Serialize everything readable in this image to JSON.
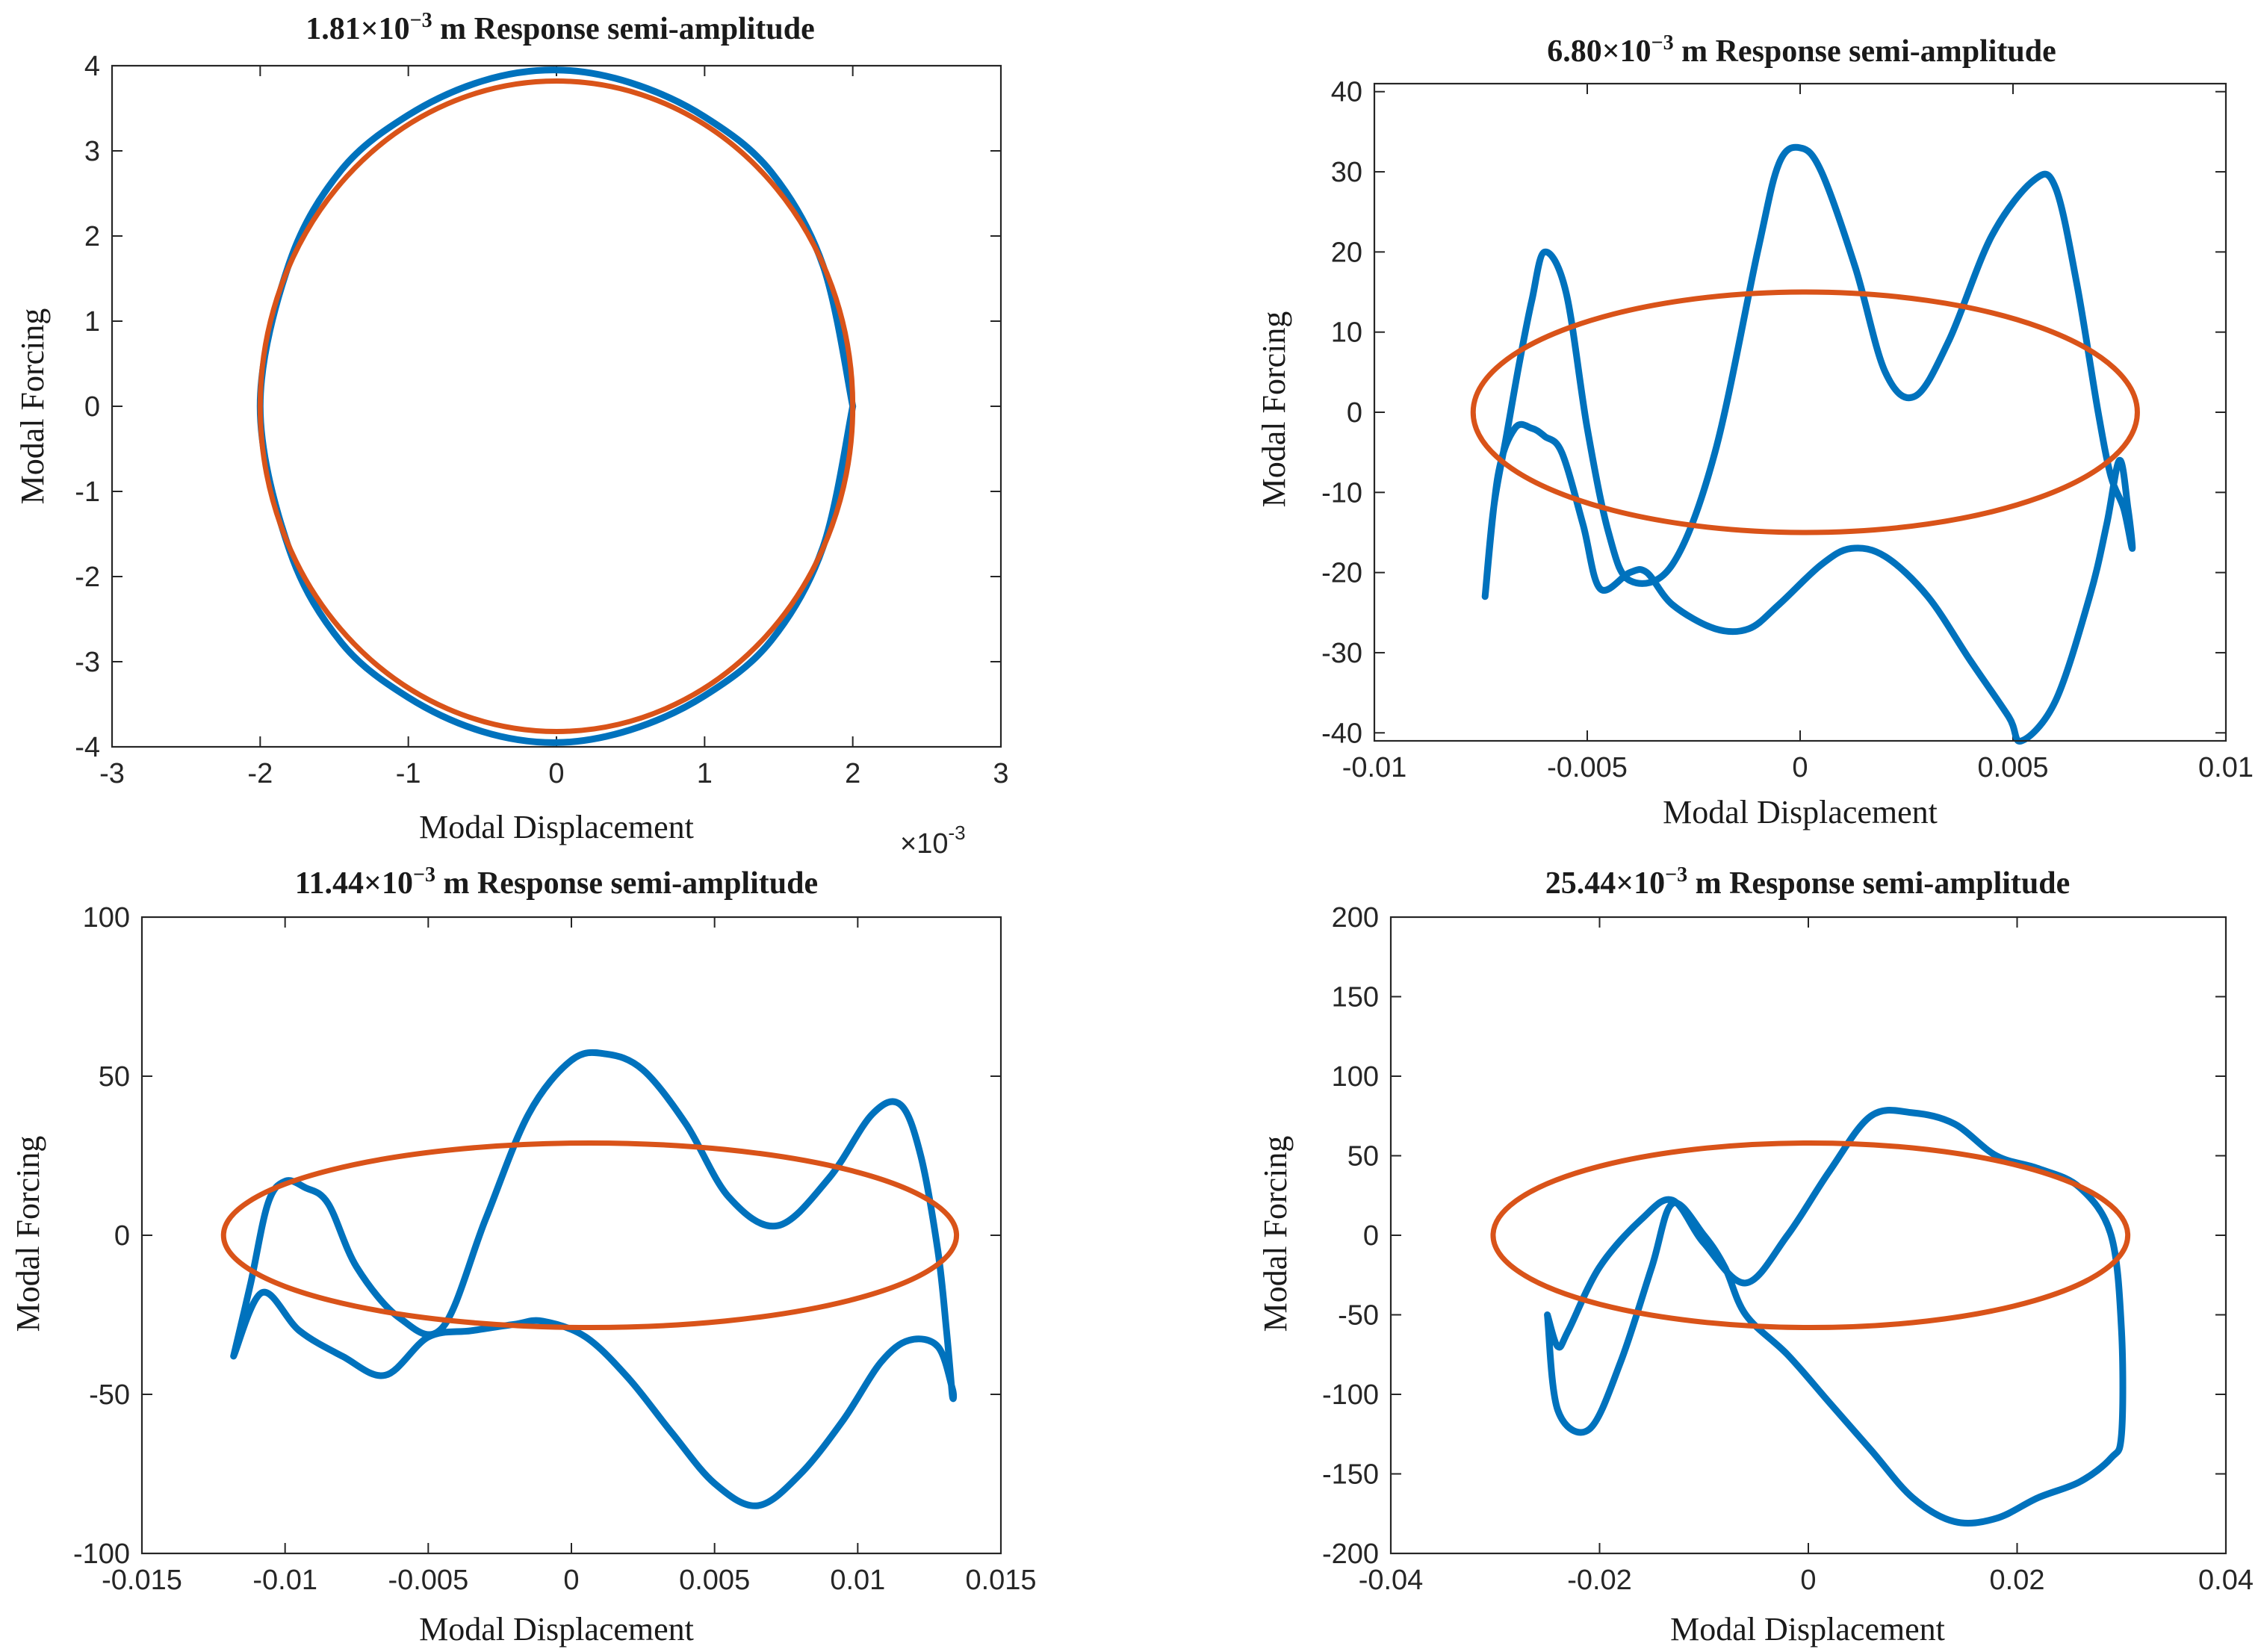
{
  "figure": {
    "colors": {
      "hysteresis": "#0072BD",
      "linear": "#D95319",
      "axis": "#262626"
    }
  },
  "chart_data": [
    {
      "type": "line",
      "title_value": "1.81×10",
      "title_exp": "−3",
      "title_rest": " m Response semi-amplitude",
      "xlabel": "Modal Displacement",
      "ylabel": "Modal Forcing",
      "xlim": [
        -3,
        3
      ],
      "ylim": [
        -4,
        4
      ],
      "x_ticks": [
        -3,
        -2,
        -1,
        0,
        1,
        2,
        3
      ],
      "x_tick_labels": [
        "-3",
        "-2",
        "-1",
        "0",
        "1",
        "2",
        "3"
      ],
      "y_ticks": [
        -4,
        -3,
        -2,
        -1,
        0,
        1,
        2,
        3,
        4
      ],
      "y_tick_labels": [
        "-4",
        "-3",
        "-2",
        "-1",
        "0",
        "1",
        "2",
        "3",
        "4"
      ],
      "x_exponent_base": "×10",
      "x_exponent_power": "-3",
      "series": [
        {
          "name": "hysteresis loop",
          "x": [
            2.0,
            1.8,
            1.45,
            1.0,
            0.5,
            0.0,
            -0.5,
            -1.0,
            -1.45,
            -1.8,
            -2.0,
            -1.8,
            -1.45,
            -1.0,
            -0.5,
            0.0,
            0.5,
            1.0,
            1.45,
            1.8,
            2.0
          ],
          "y": [
            0.0,
            1.65,
            2.75,
            3.4,
            3.8,
            3.95,
            3.82,
            3.42,
            2.78,
            1.7,
            0.0,
            -1.7,
            -2.78,
            -3.42,
            -3.82,
            -3.95,
            -3.8,
            -3.4,
            -2.75,
            -1.65,
            0.0
          ]
        },
        {
          "name": "linear ellipse",
          "center": [
            0,
            0
          ],
          "semi_x": 2.0,
          "semi_y": 3.82
        }
      ]
    },
    {
      "type": "line",
      "title_value": "6.80×10",
      "title_exp": "−3",
      "title_rest": " m Response semi-amplitude",
      "xlabel": "Modal Displacement",
      "ylabel": "Modal Forcing",
      "xlim": [
        -0.01,
        0.01
      ],
      "ylim": [
        -41,
        41
      ],
      "x_ticks": [
        -0.01,
        -0.005,
        0,
        0.005,
        0.01
      ],
      "x_tick_labels": [
        "-0.01",
        "-0.005",
        "0",
        "0.005",
        "0.01"
      ],
      "y_ticks": [
        -40,
        -30,
        -20,
        -10,
        0,
        10,
        20,
        30,
        40
      ],
      "y_tick_labels": [
        "-40",
        "-30",
        "-20",
        "-10",
        "0",
        "10",
        "20",
        "30",
        "40"
      ],
      "series": [
        {
          "name": "hysteresis loop",
          "x": [
            -0.0074,
            -0.0072,
            -0.0069,
            -0.0066,
            -0.0063,
            -0.006,
            -0.0055,
            -0.005,
            -0.0045,
            -0.004,
            -0.003,
            -0.002,
            -0.001,
            -0.0005,
            0.0,
            0.0005,
            0.0013,
            0.002,
            0.0027,
            0.0035,
            0.0045,
            0.0055,
            0.006,
            0.0065,
            0.007,
            0.0073,
            0.0076,
            0.0078,
            0.0077,
            0.0075,
            0.0072,
            0.0068,
            0.006,
            0.0052,
            0.0049,
            0.004,
            0.003,
            0.002,
            0.0012,
            0.0005,
            -0.0005,
            -0.0012,
            -0.002,
            -0.003,
            -0.0036,
            -0.004,
            -0.0047,
            -0.0051,
            -0.0056,
            -0.006,
            -0.0063,
            -0.0067,
            -0.0071,
            -0.0074
          ],
          "y": [
            -23,
            -12,
            -3,
            6,
            14,
            20,
            15,
            -2,
            -15,
            -21,
            -19,
            -5,
            20,
            31,
            33,
            30,
            18,
            5,
            2,
            9,
            22,
            29,
            28,
            16,
            0,
            -8,
            -12,
            -17,
            -12,
            -6,
            -14,
            -23,
            -36,
            -41,
            -38,
            -31,
            -23,
            -18,
            -17,
            -19,
            -24,
            -27,
            -27,
            -24,
            -20,
            -20,
            -22,
            -14,
            -5,
            -3,
            -2,
            -2,
            -8,
            -23
          ]
        },
        {
          "name": "linear ellipse",
          "center": [
            0.00012,
            0
          ],
          "semi_x": 0.0078,
          "semi_y": 15
        }
      ]
    },
    {
      "type": "line",
      "title_value": "11.44×10",
      "title_exp": "−3",
      "title_rest": " m Response semi-amplitude",
      "xlabel": "Modal Displacement",
      "ylabel": "Modal Forcing",
      "xlim": [
        -0.015,
        0.015
      ],
      "ylim": [
        -100,
        100
      ],
      "x_ticks": [
        -0.015,
        -0.01,
        -0.005,
        0,
        0.005,
        0.01,
        0.015
      ],
      "x_tick_labels": [
        "-0.015",
        "-0.01",
        "-0.005",
        "0",
        "0.005",
        "0.01",
        "0.015"
      ],
      "y_ticks": [
        -100,
        -50,
        0,
        50,
        100
      ],
      "y_tick_labels": [
        "-100",
        "-50",
        "0",
        "50",
        "100"
      ],
      "series": [
        {
          "name": "hysteresis loop",
          "x": [
            -0.0118,
            -0.0112,
            -0.0106,
            -0.01,
            -0.0093,
            -0.0085,
            -0.0075,
            -0.006,
            -0.0045,
            -0.003,
            -0.0015,
            0.0,
            0.0012,
            0.0025,
            0.004,
            0.0055,
            0.0072,
            0.009,
            0.0105,
            0.0115,
            0.0122,
            0.0128,
            0.0131,
            0.0133,
            0.0133,
            0.0128,
            0.0118,
            0.0108,
            0.0095,
            0.008,
            0.0065,
            0.005,
            0.0035,
            0.002,
            0.0005,
            -0.001,
            -0.002,
            -0.0035,
            -0.005,
            -0.0065,
            -0.008,
            -0.0095,
            -0.0108,
            -0.0118
          ],
          "y": [
            -38,
            -15,
            10,
            17,
            15,
            10,
            -10,
            -26,
            -29,
            5,
            38,
            55,
            57,
            52,
            35,
            12,
            3,
            18,
            38,
            41,
            25,
            -5,
            -30,
            -50,
            -48,
            -35,
            -33,
            -40,
            -58,
            -75,
            -85,
            -78,
            -62,
            -45,
            -32,
            -27,
            -28,
            -30,
            -32,
            -44,
            -38,
            -30,
            -18,
            -38
          ]
        },
        {
          "name": "linear ellipse",
          "center": [
            0.00065,
            0
          ],
          "semi_x": 0.0128,
          "semi_y": 29
        }
      ]
    },
    {
      "type": "line",
      "title_value": "25.44×10",
      "title_exp": "−3",
      "title_rest": " m Response semi-amplitude",
      "xlabel": "Modal Displacement",
      "ylabel": "Modal Forcing",
      "xlim": [
        -0.04,
        0.04
      ],
      "ylim": [
        -200,
        200
      ],
      "x_ticks": [
        -0.04,
        -0.02,
        0,
        0.02,
        0.04
      ],
      "x_tick_labels": [
        "-0.04",
        "-0.02",
        "0",
        "0.02",
        "0.04"
      ],
      "y_ticks": [
        -200,
        -150,
        -100,
        -50,
        0,
        50,
        100,
        150,
        200
      ],
      "y_tick_labels": [
        "-200",
        "-150",
        "-100",
        "-50",
        "0",
        "50",
        "100",
        "150",
        "200"
      ],
      "series": [
        {
          "name": "hysteresis loop",
          "x": [
            -0.025,
            -0.024,
            -0.023,
            -0.02,
            -0.016,
            -0.013,
            -0.01,
            -0.006,
            -0.002,
            0.002,
            0.006,
            0.01,
            0.014,
            0.018,
            0.022,
            0.026,
            0.029,
            0.03,
            0.03,
            0.029,
            0.026,
            0.022,
            0.018,
            0.014,
            0.01,
            0.006,
            0.002,
            -0.002,
            -0.006,
            -0.008,
            -0.01,
            -0.013,
            -0.015,
            -0.018,
            -0.021,
            -0.024,
            -0.025
          ],
          "y": [
            -50,
            -70,
            -60,
            -20,
            10,
            22,
            -5,
            -30,
            0,
            40,
            75,
            77,
            70,
            50,
            42,
            30,
            0,
            -60,
            -125,
            -140,
            -155,
            -165,
            -178,
            -180,
            -165,
            -135,
            -105,
            -75,
            -50,
            -20,
            0,
            20,
            -20,
            -80,
            -122,
            -110,
            -50
          ]
        },
        {
          "name": "linear ellipse",
          "center": [
            0.0002,
            0
          ],
          "semi_x": 0.0304,
          "semi_y": 58
        }
      ]
    }
  ]
}
